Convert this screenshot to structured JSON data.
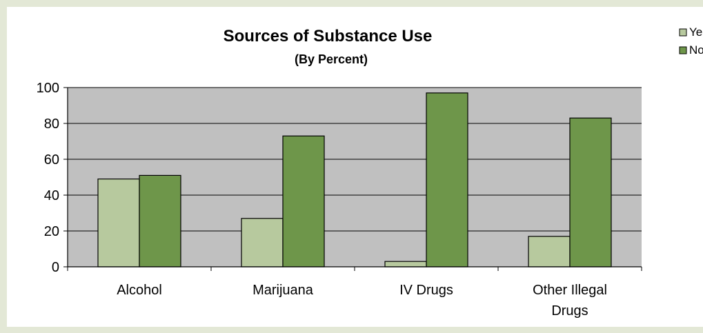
{
  "chart_data": {
    "type": "bar",
    "title": "Sources of Substance Use",
    "subtitle": "(By Percent)",
    "categories": [
      [
        "Alcohol"
      ],
      [
        "Marijuana"
      ],
      [
        "IV Drugs"
      ],
      [
        "Other Illegal",
        "Drugs"
      ]
    ],
    "series": [
      {
        "name": "Yes",
        "values": [
          49,
          27,
          3,
          17
        ]
      },
      {
        "name": "No",
        "values": [
          51,
          73,
          97,
          83
        ]
      }
    ],
    "ylim": [
      0,
      100
    ],
    "yticks": [
      "0",
      "20",
      "40",
      "60",
      "80",
      "100"
    ],
    "grid": true,
    "legend_position": "top-right",
    "colors": {
      "Yes": "#b7c99e",
      "No": "#6e964a",
      "plot_background": "#c0c0c0",
      "frame_background": "#e3e8d6"
    }
  }
}
